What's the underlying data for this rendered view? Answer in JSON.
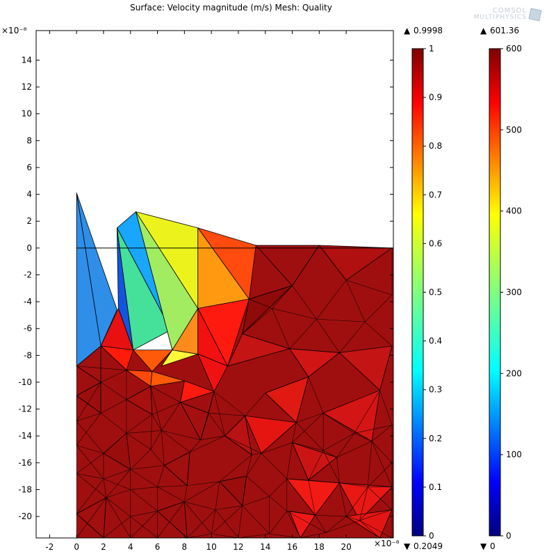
{
  "title": "Surface: Velocity magnitude (m/s) Mesh: Quality",
  "logo": {
    "line1": "COMSOL",
    "line2": "MULTIPHYSICS"
  },
  "chart_data": {
    "type": "heatmap",
    "title": "Surface: Velocity magnitude (m/s) Mesh: Quality",
    "x_axis": {
      "multiplier": "×10⁻⁸",
      "range": [
        -3,
        23.5
      ],
      "ticks": [
        -2,
        0,
        2,
        4,
        6,
        8,
        10,
        12,
        14,
        16,
        18,
        20
      ]
    },
    "y_axis": {
      "multiplier": "×10⁻⁸",
      "range": [
        -21.6,
        16.2
      ],
      "ticks": [
        14,
        12,
        10,
        8,
        6,
        4,
        2,
        0,
        -2,
        -4,
        -6,
        -8,
        -10,
        -12,
        -14,
        -16,
        -18,
        -20
      ]
    },
    "colorbars": [
      {
        "name": "Mesh: Quality",
        "range": [
          0,
          1
        ],
        "max_label": "0.9998",
        "min_label": "0.2049",
        "ticks": [
          "1",
          "0.9",
          "0.8",
          "0.7",
          "0.6",
          "0.5",
          "0.4",
          "0.3",
          "0.2",
          "0.1",
          "0"
        ]
      },
      {
        "name": "Velocity magnitude (m/s)",
        "range": [
          0,
          600
        ],
        "max_label": "601.36",
        "min_label": "0",
        "ticks": [
          "600",
          "500",
          "400",
          "300",
          "200",
          "100",
          "0"
        ]
      }
    ],
    "color_scale": "rainbow",
    "base_color": "#a00f0f",
    "mesh_triangles": [
      {
        "pts": [
          [
            0,
            4.1
          ],
          [
            3,
            -4.6
          ],
          [
            1.8,
            -7.3
          ]
        ],
        "color": "#2f8ee8"
      },
      {
        "pts": [
          [
            0,
            4.1
          ],
          [
            1.8,
            -7.3
          ],
          [
            0,
            -8.8
          ]
        ],
        "color": "#2f8ee8"
      },
      {
        "pts": [
          [
            3,
            1.5
          ],
          [
            3.1,
            -4.5
          ],
          [
            4.2,
            -7.6
          ]
        ],
        "color": "#1155e0"
      },
      {
        "pts": [
          [
            3,
            1.5
          ],
          [
            4.4,
            2.7
          ],
          [
            7,
            -6.1
          ]
        ],
        "color": "#18a6ff"
      },
      {
        "pts": [
          [
            3,
            1.5
          ],
          [
            7,
            -6.1
          ],
          [
            4.2,
            -7.6
          ]
        ],
        "color": "#45e09a"
      },
      {
        "pts": [
          [
            4.4,
            2.7
          ],
          [
            7,
            -6.1
          ],
          [
            7.1,
            -7.6
          ]
        ],
        "color": "#1b9cf5"
      },
      {
        "pts": [
          [
            4.4,
            2.7
          ],
          [
            9,
            -4.5
          ],
          [
            7.1,
            -7.6
          ]
        ],
        "color": "#a2ec62"
      },
      {
        "pts": [
          [
            4.4,
            2.7
          ],
          [
            9,
            1.5
          ],
          [
            9,
            -4.5
          ]
        ],
        "color": "#ecf31c"
      },
      {
        "pts": [
          [
            9,
            1.5
          ],
          [
            12.8,
            -3.8
          ],
          [
            9,
            -4.5
          ]
        ],
        "color": "#ff9a10"
      },
      {
        "pts": [
          [
            9,
            1.5
          ],
          [
            13.3,
            0.2
          ],
          [
            12.8,
            -3.8
          ]
        ],
        "color": "#ff4b0d"
      },
      {
        "pts": [
          [
            3.1,
            -4.5
          ],
          [
            1.8,
            -7.3
          ],
          [
            4.2,
            -7.6
          ]
        ],
        "color": "#e81010"
      },
      {
        "pts": [
          [
            1.8,
            -7.3
          ],
          [
            4.2,
            -7.6
          ],
          [
            3.7,
            -9.1
          ]
        ],
        "color": "#ff1a0a"
      },
      {
        "pts": [
          [
            4.2,
            -7.6
          ],
          [
            7.1,
            -7.6
          ],
          [
            5.6,
            -9.2
          ]
        ],
        "color": "#ff5a0a"
      },
      {
        "pts": [
          [
            7.1,
            -7.6
          ],
          [
            9,
            -7.9
          ],
          [
            6.3,
            -8.8
          ]
        ],
        "color": "#fff83a"
      },
      {
        "pts": [
          [
            7.1,
            -7.6
          ],
          [
            9,
            -4.5
          ],
          [
            9,
            -7.9
          ]
        ],
        "color": "#ff8b1a"
      },
      {
        "pts": [
          [
            9,
            -4.5
          ],
          [
            12.8,
            -3.8
          ],
          [
            11.2,
            -8.8
          ]
        ],
        "color": "#ff1a10"
      },
      {
        "pts": [
          [
            9,
            -4.5
          ],
          [
            11.2,
            -8.8
          ],
          [
            9,
            -7.9
          ]
        ],
        "color": "#f21010"
      },
      {
        "pts": [
          [
            3.7,
            -9.1
          ],
          [
            5.6,
            -9.2
          ],
          [
            5.5,
            -10.3
          ]
        ],
        "color": "#ff4a0a"
      },
      {
        "pts": [
          [
            5.6,
            -9.2
          ],
          [
            8,
            -9.9
          ],
          [
            5.5,
            -10.3
          ]
        ],
        "color": "#ff5a0a"
      },
      {
        "pts": [
          [
            9,
            -7.9
          ],
          [
            11.2,
            -8.8
          ],
          [
            10.2,
            -10.7
          ]
        ],
        "color": "#f01212"
      },
      {
        "pts": [
          [
            8,
            -9.9
          ],
          [
            10.2,
            -10.7
          ],
          [
            7.7,
            -11.5
          ]
        ],
        "color": "#ff1a10"
      },
      {
        "pts": [
          [
            13.3,
            0.2
          ],
          [
            18,
            0.2
          ],
          [
            16,
            -2.8
          ]
        ],
        "color": "#a00f0f"
      },
      {
        "pts": [
          [
            18,
            0.2
          ],
          [
            23.4,
            0
          ],
          [
            20,
            -2.4
          ]
        ],
        "color": "#b01010"
      },
      {
        "pts": [
          [
            16,
            -2.8
          ],
          [
            12.8,
            -3.8
          ],
          [
            12.3,
            -6.4
          ]
        ],
        "color": "#8f0a0a"
      },
      {
        "pts": [
          [
            12.3,
            -6.4
          ],
          [
            15.8,
            -7.5
          ],
          [
            11.2,
            -8.8
          ]
        ],
        "color": "#c41414"
      },
      {
        "pts": [
          [
            15.8,
            -7.5
          ],
          [
            19.5,
            -7.8
          ],
          [
            17.2,
            -9.6
          ]
        ],
        "color": "#d11515"
      },
      {
        "pts": [
          [
            19.5,
            -7.8
          ],
          [
            23.4,
            -7.3
          ],
          [
            22.5,
            -10.6
          ]
        ],
        "color": "#c51414"
      },
      {
        "pts": [
          [
            14,
            -10.8
          ],
          [
            17.2,
            -9.6
          ],
          [
            16.3,
            -13
          ]
        ],
        "color": "#e01a12"
      },
      {
        "pts": [
          [
            18.3,
            -12.3
          ],
          [
            22.5,
            -10.6
          ],
          [
            21.9,
            -14.4
          ]
        ],
        "color": "#d41515"
      },
      {
        "pts": [
          [
            12.5,
            -12.5
          ],
          [
            16.3,
            -13
          ],
          [
            13.7,
            -15.3
          ]
        ],
        "color": "#e51612"
      },
      {
        "pts": [
          [
            16,
            -14.5
          ],
          [
            19.3,
            -15.6
          ],
          [
            17.2,
            -17.3
          ]
        ],
        "color": "#cc1414"
      },
      {
        "pts": [
          [
            15.6,
            -17.2
          ],
          [
            19.5,
            -17.5
          ],
          [
            17.7,
            -19.9
          ]
        ],
        "color": "#f21a14"
      },
      {
        "pts": [
          [
            19.5,
            -17.5
          ],
          [
            23.4,
            -17.8
          ],
          [
            21,
            -20.3
          ]
        ],
        "color": "#e81814"
      },
      {
        "pts": [
          [
            15.8,
            -19.6
          ],
          [
            17.7,
            -19.9
          ],
          [
            16.6,
            -21.6
          ]
        ],
        "color": "#f01816"
      },
      {
        "pts": [
          [
            20,
            -20
          ],
          [
            23.4,
            -19.5
          ],
          [
            22.5,
            -21.6
          ]
        ],
        "color": "#e41614"
      },
      {
        "pts": [
          [
            0,
            -8.8
          ],
          [
            1.8,
            -7.3
          ],
          [
            1.8,
            -10
          ]
        ],
        "color": "#a31010"
      },
      {
        "pts": [
          [
            0,
            -11
          ],
          [
            1.8,
            -10
          ],
          [
            1.8,
            -12.3
          ]
        ],
        "color": "#9c0e0e"
      },
      {
        "pts": [
          [
            3.7,
            -11.3
          ],
          [
            5.5,
            -10.3
          ],
          [
            5.6,
            -12.4
          ]
        ],
        "color": "#a80f0f"
      },
      {
        "pts": [
          [
            7.7,
            -11.5
          ],
          [
            9.8,
            -12.3
          ],
          [
            9.2,
            -14.3
          ]
        ],
        "color": "#a50f0f"
      },
      {
        "pts": [
          [
            11,
            -14
          ],
          [
            12.5,
            -12.5
          ],
          [
            13,
            -15.4
          ]
        ],
        "color": "#b81212"
      },
      {
        "pts": [
          [
            2,
            -15.3
          ],
          [
            3.7,
            -13.8
          ],
          [
            4,
            -16.5
          ]
        ],
        "color": "#9a0d0d"
      },
      {
        "pts": [
          [
            6.5,
            -16.2
          ],
          [
            8.4,
            -15.2
          ],
          [
            8.2,
            -17.7
          ]
        ],
        "color": "#a20f0f"
      },
      {
        "pts": [
          [
            10.6,
            -17.4
          ],
          [
            12.6,
            -17
          ],
          [
            12.3,
            -19.2
          ]
        ],
        "color": "#9b0d0d"
      },
      {
        "pts": [
          [
            0,
            -19.8
          ],
          [
            2.2,
            -18.6
          ],
          [
            2,
            -21.6
          ]
        ],
        "color": "#a10f0f"
      },
      {
        "pts": [
          [
            6,
            -19.6
          ],
          [
            8,
            -18.9
          ],
          [
            8.2,
            -21.6
          ]
        ],
        "color": "#9e0e0e"
      }
    ],
    "mesh_nodes": [
      [
        0,
        -8.8
      ],
      [
        1.8,
        -7.3
      ],
      [
        3.7,
        -9.1
      ],
      [
        5.5,
        -10.3
      ],
      [
        7.7,
        -11.5
      ],
      [
        10.2,
        -10.7
      ],
      [
        12.3,
        -6.4
      ],
      [
        12.8,
        -3.8
      ],
      [
        13.3,
        0.2
      ],
      [
        16,
        -2.8
      ],
      [
        18,
        0.2
      ],
      [
        20,
        -2.4
      ],
      [
        23.4,
        0
      ],
      [
        23.4,
        -3.5
      ],
      [
        21.4,
        -5.5
      ],
      [
        23.4,
        -7.3
      ],
      [
        19.5,
        -7.8
      ],
      [
        17.8,
        -5.3
      ],
      [
        15.8,
        -7.5
      ],
      [
        14.5,
        -4.5
      ],
      [
        14,
        -10.8
      ],
      [
        17.2,
        -9.6
      ],
      [
        22.5,
        -10.6
      ],
      [
        23.4,
        -13.2
      ],
      [
        18.3,
        -12.3
      ],
      [
        20.6,
        -13.8
      ],
      [
        16.3,
        -13
      ],
      [
        12.5,
        -12.5
      ],
      [
        11,
        -14
      ],
      [
        13.7,
        -15.3
      ],
      [
        16,
        -14.5
      ],
      [
        18.3,
        -15.1
      ],
      [
        21.9,
        -14.4
      ],
      [
        23.4,
        -16
      ],
      [
        19.3,
        -15.6
      ],
      [
        17.2,
        -17.3
      ],
      [
        15.6,
        -17.2
      ],
      [
        13,
        -15.4
      ],
      [
        12.6,
        -17
      ],
      [
        10.6,
        -17.4
      ],
      [
        9.2,
        -14.3
      ],
      [
        9.8,
        -12.3
      ],
      [
        8.4,
        -15.2
      ],
      [
        6.3,
        -13.6
      ],
      [
        5.6,
        -12.4
      ],
      [
        3.7,
        -11.3
      ],
      [
        1.8,
        -10
      ],
      [
        0,
        -11
      ],
      [
        0,
        -12.9
      ],
      [
        1.8,
        -12.3
      ],
      [
        3.7,
        -13.8
      ],
      [
        5.5,
        -15
      ],
      [
        6.5,
        -16.2
      ],
      [
        4,
        -16.5
      ],
      [
        2,
        -15.3
      ],
      [
        0,
        -14.7
      ],
      [
        0,
        -16.8
      ],
      [
        2,
        -17.2
      ],
      [
        4,
        -18
      ],
      [
        6,
        -17.8
      ],
      [
        8.2,
        -17.7
      ],
      [
        10.3,
        -19.5
      ],
      [
        12.3,
        -19.2
      ],
      [
        14.3,
        -18.5
      ],
      [
        15.6,
        -19.6
      ],
      [
        17.7,
        -19.9
      ],
      [
        19.5,
        -17.5
      ],
      [
        21.6,
        -17.8
      ],
      [
        23.4,
        -17.8
      ],
      [
        23.4,
        -19.5
      ],
      [
        21,
        -20.3
      ],
      [
        18.5,
        -21.2
      ],
      [
        16.6,
        -21.6
      ],
      [
        14.3,
        -21.3
      ],
      [
        12,
        -21.6
      ],
      [
        10,
        -21.3
      ],
      [
        8,
        -18.9
      ],
      [
        6,
        -19.6
      ],
      [
        4,
        -20
      ],
      [
        2.2,
        -18.6
      ],
      [
        0,
        -19.8
      ],
      [
        0,
        -21.6
      ],
      [
        2,
        -21.6
      ],
      [
        4,
        -21.6
      ],
      [
        6,
        -21.6
      ],
      [
        8.2,
        -21.6
      ],
      [
        20,
        -20
      ],
      [
        22.5,
        -21.6
      ],
      [
        23.4,
        -21.6
      ]
    ]
  }
}
